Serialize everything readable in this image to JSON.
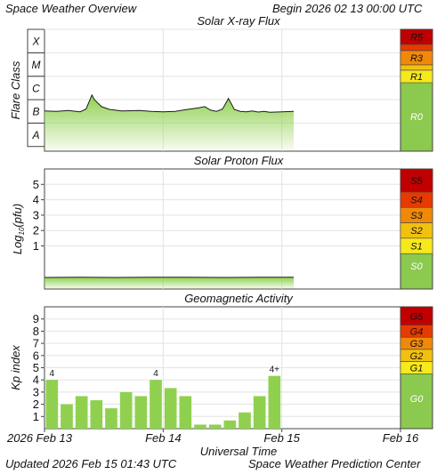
{
  "header": {
    "title": "Space Weather Overview",
    "begin_label": "Begin",
    "begin_value": "2026 02 13 00:00 UTC"
  },
  "footer": {
    "updated_label": "Updated",
    "updated_value": "2026 Feb 15 01:43 UTC",
    "credit": "Space Weather Prediction Center"
  },
  "colors": {
    "fill_green": "#8fd14f",
    "sidebar_green": "#8bc94f",
    "scale_colors": [
      "#c00000",
      "#e63b00",
      "#f0890a",
      "#f2c10f",
      "#f6e91c"
    ]
  },
  "chart_data": [
    {
      "type": "area",
      "title": "Solar X-ray Flux",
      "ylabel": "Flare Class",
      "y_categories": [
        "A",
        "B",
        "C",
        "M",
        "X"
      ],
      "x_unit": "days since 2026 Feb 13 00:00 UTC",
      "xlim": [
        0,
        3
      ],
      "log10_flux_range": [
        -8.2,
        -3
      ],
      "x": [
        0.0,
        0.1,
        0.2,
        0.3,
        0.35,
        0.4,
        0.42,
        0.48,
        0.55,
        0.65,
        0.8,
        0.9,
        1.0,
        1.1,
        1.2,
        1.3,
        1.35,
        1.4,
        1.45,
        1.5,
        1.55,
        1.6,
        1.65,
        1.7,
        1.75,
        1.8,
        1.85,
        1.9,
        2.0,
        2.1
      ],
      "y_log10_flux": [
        -6.48,
        -6.5,
        -6.46,
        -6.52,
        -6.4,
        -5.8,
        -6.0,
        -6.3,
        -6.42,
        -6.48,
        -6.46,
        -6.5,
        -6.52,
        -6.5,
        -6.42,
        -6.35,
        -6.3,
        -6.45,
        -6.5,
        -6.4,
        -5.95,
        -6.42,
        -6.5,
        -6.52,
        -6.48,
        -6.53,
        -6.5,
        -6.54,
        -6.52,
        -6.5
      ],
      "scale_labels": [
        "R5",
        "R3",
        "R1",
        "R0"
      ]
    },
    {
      "type": "area",
      "title": "Solar Proton Flux",
      "ylabel": "Log10(pfu)",
      "yticks": [
        1,
        2,
        3,
        4,
        5
      ],
      "ylim": [
        -1.8,
        6
      ],
      "x_unit": "days since 2026 Feb 13 00:00 UTC",
      "xlim": [
        0,
        3
      ],
      "x": [
        0.0,
        0.3,
        0.6,
        0.9,
        1.2,
        1.5,
        1.8,
        2.1
      ],
      "y": [
        -1.05,
        -1.04,
        -1.05,
        -1.03,
        -1.04,
        -1.05,
        -1.04,
        -1.03
      ],
      "scale_labels": [
        "S5",
        "S4",
        "S3",
        "S2",
        "S1",
        "S0"
      ]
    },
    {
      "type": "bar",
      "title": "Geomagnetic Activity",
      "ylabel": "Kp index",
      "yticks": [
        1,
        2,
        3,
        4,
        5,
        6,
        7,
        8,
        9
      ],
      "ylim": [
        0,
        10
      ],
      "x_unit": "days since 2026 Feb 13 00:00 UTC",
      "xlim": [
        0,
        3
      ],
      "bar_start_days": [
        0,
        0.125,
        0.25,
        0.375,
        0.5,
        0.625,
        0.75,
        0.875,
        1.0,
        1.125,
        1.25,
        1.375,
        1.5,
        1.625,
        1.75,
        1.875
      ],
      "values": [
        4.0,
        2.0,
        2.67,
        2.33,
        1.67,
        3.0,
        2.67,
        4.0,
        3.33,
        2.67,
        0.33,
        0.33,
        0.67,
        1.33,
        2.67,
        4.33
      ],
      "bar_labels": [
        {
          "index": 0,
          "text": "4"
        },
        {
          "index": 7,
          "text": "4"
        },
        {
          "index": 15,
          "text": "4+"
        }
      ],
      "scale_labels": [
        "G5",
        "G4",
        "G3",
        "G2",
        "G1",
        "G0"
      ],
      "xlabel": "Universal Time",
      "xticks": [
        "2026 Feb 13",
        "Feb 14",
        "Feb 15",
        "Feb 16"
      ]
    }
  ]
}
